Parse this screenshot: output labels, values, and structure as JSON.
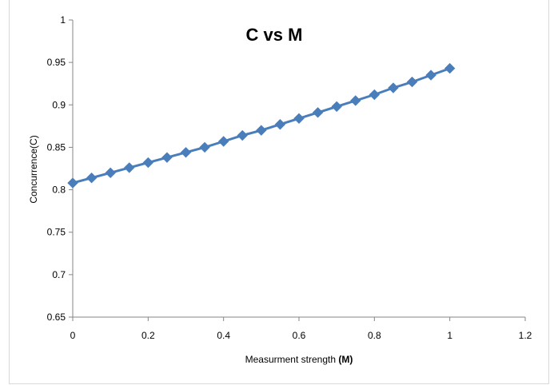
{
  "chart_data": {
    "type": "line",
    "title": "C vs M",
    "xlabel": "Measurment strength",
    "xlabel_bold": "(M)",
    "ylabel": "Concurrence(C)",
    "xlim": [
      0,
      1.2
    ],
    "ylim": [
      0.65,
      1
    ],
    "x_ticks": [
      "0",
      "0.2",
      "0.4",
      "0.6",
      "0.8",
      "1",
      "1.2"
    ],
    "y_ticks": [
      "0.65",
      "0.7",
      "0.75",
      "0.8",
      "0.85",
      "0.9",
      "0.95",
      "1"
    ],
    "grid": false,
    "legend": "none",
    "color": "#4a7ebb",
    "series": [
      {
        "x": [
          0,
          0.05,
          0.1,
          0.15,
          0.2,
          0.25,
          0.3,
          0.35,
          0.4,
          0.45,
          0.5,
          0.55,
          0.6,
          0.65,
          0.7,
          0.75,
          0.8,
          0.85,
          0.9,
          0.95,
          1
        ],
        "values": [
          0.808,
          0.814,
          0.82,
          0.826,
          0.832,
          0.838,
          0.844,
          0.85,
          0.857,
          0.864,
          0.87,
          0.877,
          0.884,
          0.891,
          0.898,
          0.905,
          0.912,
          0.92,
          0.927,
          0.935,
          0.943
        ]
      }
    ]
  }
}
